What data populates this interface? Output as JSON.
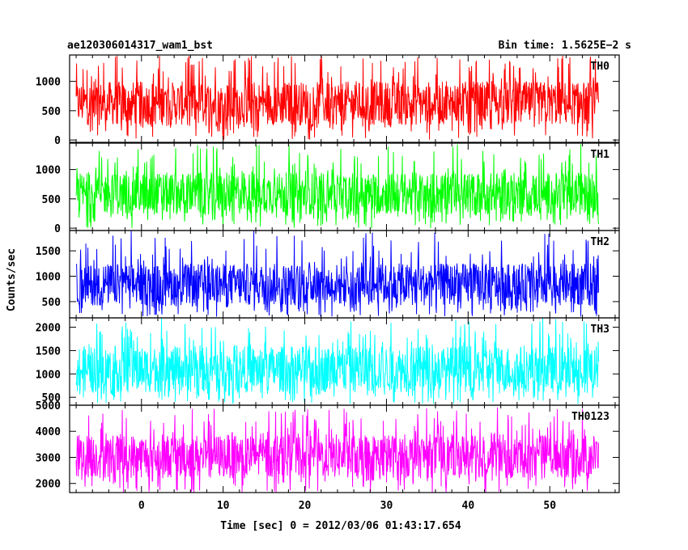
{
  "header": {
    "title": "ae120306014317_wam1_bst",
    "bin_time": "Bin time: 1.5625E−2 s"
  },
  "chart_data": {
    "type": "line",
    "xlabel": "Time [sec] 0 = 2012/03/06 01:43:17.654",
    "ylabel": "Counts/sec",
    "xlim": [
      -8.8,
      58.5
    ],
    "x_range_data": [
      -8.0,
      56.0
    ],
    "x_ticks": [
      "0",
      "10",
      "20",
      "30",
      "40",
      "50"
    ],
    "grid": false,
    "panels": [
      {
        "name": "TH0",
        "color": "#ff0000",
        "ylim": [
          -40,
          1450
        ],
        "y_ticks": [
          "0",
          "500",
          "1000"
        ],
        "y_tick_values": [
          0,
          500,
          1000
        ],
        "band": {
          "low": 0,
          "q1": 250,
          "q3": 1000,
          "high": 1450
        }
      },
      {
        "name": "TH1",
        "color": "#00ff00",
        "ylim": [
          -40,
          1450
        ],
        "y_ticks": [
          "0",
          "500",
          "1000"
        ],
        "y_tick_values": [
          0,
          500,
          1000
        ],
        "band": {
          "low": 0,
          "q1": 230,
          "q3": 950,
          "high": 1450
        }
      },
      {
        "name": "TH2",
        "color": "#0000ff",
        "ylim": [
          180,
          1900
        ],
        "y_ticks": [
          "500",
          "1000",
          "1500"
        ],
        "y_tick_values": [
          500,
          1000,
          1500
        ],
        "band": {
          "low": 200,
          "q1": 420,
          "q3": 1250,
          "high": 1900
        }
      },
      {
        "name": "TH3",
        "color": "#00ffff",
        "ylim": [
          330,
          2200
        ],
        "y_ticks": [
          "500",
          "1000",
          "1500",
          "2000"
        ],
        "y_tick_values": [
          500,
          1000,
          1500,
          2000
        ],
        "band": {
          "low": 350,
          "q1": 600,
          "q3": 1600,
          "high": 2200
        }
      },
      {
        "name": "TH0123",
        "color": "#ff00ff",
        "ylim": [
          1650,
          5000
        ],
        "y_ticks": [
          "2000",
          "3000",
          "4000",
          "5000"
        ],
        "y_tick_values": [
          2000,
          3000,
          4000,
          5000
        ],
        "band": {
          "low": 1650,
          "q1": 2200,
          "q3": 3900,
          "high": 4950
        }
      }
    ]
  }
}
